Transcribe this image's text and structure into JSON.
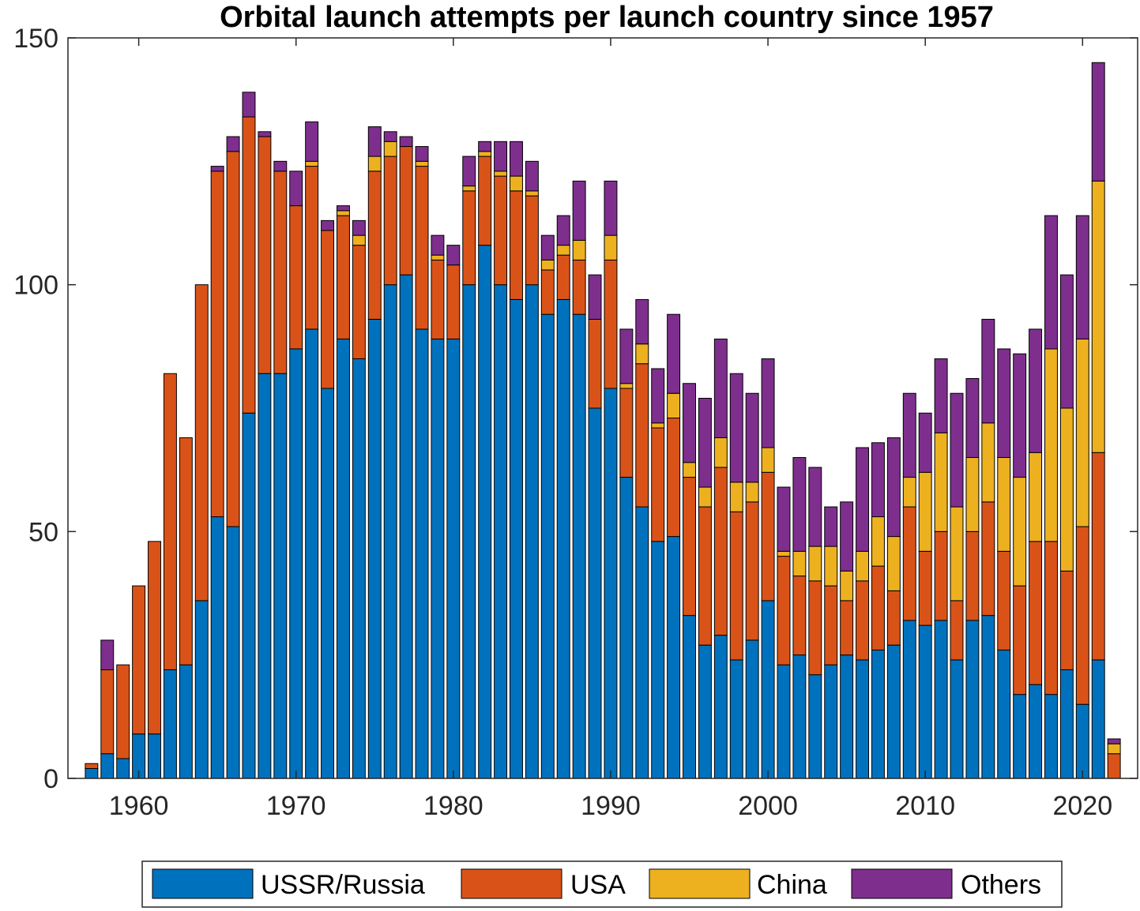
{
  "chart_data": {
    "type": "bar",
    "stacked": true,
    "title": "Orbital launch attempts per launch country since 1957",
    "xlabel": "",
    "ylabel": "",
    "xlim": [
      1955.5,
      2023.5
    ],
    "ylim": [
      0,
      150
    ],
    "xticks": [
      1960,
      1970,
      1980,
      1990,
      2000,
      2010,
      2020
    ],
    "yticks": [
      0,
      50,
      100,
      150
    ],
    "grid": false,
    "legend_position": "bottom",
    "x": [
      1957,
      1958,
      1959,
      1960,
      1961,
      1962,
      1963,
      1964,
      1965,
      1966,
      1967,
      1968,
      1969,
      1970,
      1971,
      1972,
      1973,
      1974,
      1975,
      1976,
      1977,
      1978,
      1979,
      1980,
      1981,
      1982,
      1983,
      1984,
      1985,
      1986,
      1987,
      1988,
      1989,
      1990,
      1991,
      1992,
      1993,
      1994,
      1995,
      1996,
      1997,
      1998,
      1999,
      2000,
      2001,
      2002,
      2003,
      2004,
      2005,
      2006,
      2007,
      2008,
      2009,
      2010,
      2011,
      2012,
      2013,
      2014,
      2015,
      2016,
      2017,
      2018,
      2019,
      2020,
      2021,
      2022
    ],
    "series": [
      {
        "name": "USSR/Russia",
        "color": "#0072BD",
        "values": [
          2,
          5,
          4,
          9,
          9,
          22,
          23,
          36,
          53,
          51,
          74,
          82,
          82,
          87,
          91,
          79,
          89,
          85,
          93,
          100,
          102,
          91,
          89,
          89,
          100,
          108,
          100,
          97,
          100,
          94,
          97,
          94,
          75,
          79,
          61,
          55,
          48,
          49,
          33,
          27,
          29,
          24,
          28,
          36,
          23,
          25,
          21,
          23,
          25,
          24,
          26,
          27,
          32,
          31,
          32,
          24,
          32,
          33,
          26,
          17,
          19,
          17,
          22,
          15,
          24,
          0
        ]
      },
      {
        "name": "USA",
        "color": "#D95319",
        "values": [
          1,
          17,
          19,
          30,
          39,
          60,
          46,
          64,
          70,
          76,
          60,
          48,
          41,
          29,
          33,
          32,
          25,
          23,
          30,
          26,
          26,
          33,
          16,
          15,
          19,
          18,
          22,
          22,
          18,
          9,
          9,
          11,
          18,
          26,
          18,
          29,
          23,
          24,
          28,
          28,
          34,
          30,
          28,
          26,
          22,
          16,
          19,
          16,
          11,
          16,
          17,
          11,
          23,
          15,
          18,
          12,
          18,
          23,
          20,
          22,
          29,
          31,
          20,
          36,
          42,
          5
        ]
      },
      {
        "name": "China",
        "color": "#EDB120",
        "values": [
          0,
          0,
          0,
          0,
          0,
          0,
          0,
          0,
          0,
          0,
          0,
          0,
          0,
          0,
          1,
          0,
          1,
          2,
          3,
          3,
          0,
          1,
          1,
          0,
          1,
          1,
          1,
          3,
          1,
          2,
          2,
          4,
          0,
          5,
          1,
          4,
          1,
          5,
          3,
          4,
          6,
          6,
          4,
          5,
          1,
          5,
          7,
          8,
          6,
          6,
          10,
          11,
          6,
          16,
          20,
          19,
          15,
          16,
          19,
          22,
          18,
          39,
          33,
          38,
          55,
          2
        ]
      },
      {
        "name": "Others",
        "color": "#7E2F8E",
        "values": [
          0,
          6,
          0,
          0,
          0,
          0,
          0,
          0,
          1,
          3,
          5,
          1,
          2,
          7,
          8,
          2,
          1,
          3,
          6,
          2,
          2,
          3,
          4,
          4,
          6,
          2,
          6,
          7,
          6,
          5,
          6,
          12,
          9,
          11,
          11,
          9,
          11,
          16,
          16,
          18,
          20,
          22,
          18,
          18,
          13,
          19,
          16,
          8,
          14,
          21,
          15,
          20,
          17,
          12,
          15,
          23,
          16,
          21,
          22,
          25,
          25,
          27,
          27,
          25,
          24,
          1
        ]
      }
    ]
  }
}
